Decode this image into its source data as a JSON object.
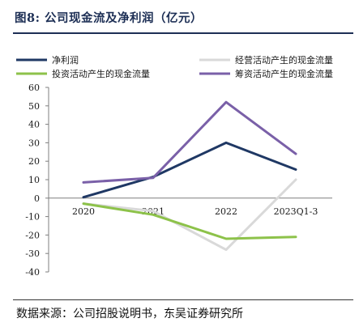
{
  "figure": {
    "title": "图8:  公司现金流及净利润（亿元）",
    "source": "数据来源：公司招股说明书，东吴证券研究所"
  },
  "chart_data": {
    "type": "line",
    "title": "",
    "xlabel": "",
    "ylabel": "",
    "categories": [
      "2020",
      "2021",
      "2022",
      "2023Q1-3"
    ],
    "ylim": [
      -40,
      60
    ],
    "yticks": [
      60,
      50,
      40,
      30,
      20,
      10,
      0,
      -10,
      -20,
      -30,
      -40
    ],
    "grid": false,
    "legend_position": "top",
    "series": [
      {
        "name": "净利润",
        "color": "#1f3864",
        "values": [
          0.5,
          11.5,
          30,
          15.5
        ]
      },
      {
        "name": "经营活动产生的现金流量",
        "color": "#d9d9d9",
        "values": [
          -3,
          -7,
          -28,
          10
        ]
      },
      {
        "name": "投资活动产生的现金流量",
        "color": "#8dc24a",
        "values": [
          -3,
          -9,
          -22,
          -21
        ]
      },
      {
        "name": "筹资活动产生的现金流量",
        "color": "#7a60a8",
        "values": [
          8.5,
          11,
          52,
          24
        ]
      }
    ]
  }
}
